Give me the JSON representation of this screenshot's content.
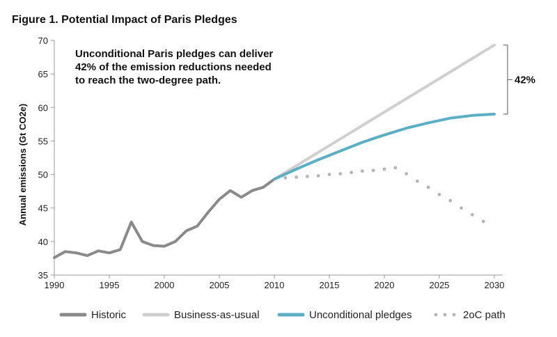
{
  "chart_data": {
    "type": "line",
    "title": "Figure 1. Potential Impact of Paris Pledges",
    "ylabel": "Annual emissions (Gt CO2e)",
    "xlabel": "",
    "xlim": [
      1990,
      2030
    ],
    "ylim": [
      35,
      70
    ],
    "x_ticks": [
      1990,
      1995,
      2000,
      2005,
      2010,
      2015,
      2020,
      2025,
      2030
    ],
    "y_ticks": [
      35,
      40,
      45,
      50,
      55,
      60,
      65,
      70
    ],
    "annotation_lines": [
      "Unconditional Paris pledges can deliver",
      "42% of the emission reductions needed",
      "to reach the two-degree path."
    ],
    "bracket_label": "42%",
    "bracket_range": [
      59,
      69.3
    ],
    "series": [
      {
        "name": "Historic",
        "color": "#8a8a8a",
        "style": "solid",
        "points": [
          [
            1990,
            37.6
          ],
          [
            1991,
            38.5
          ],
          [
            1992,
            38.3
          ],
          [
            1993,
            37.9
          ],
          [
            1994,
            38.6
          ],
          [
            1995,
            38.3
          ],
          [
            1996,
            38.8
          ],
          [
            1997,
            42.9
          ],
          [
            1998,
            40.0
          ],
          [
            1999,
            39.4
          ],
          [
            2000,
            39.3
          ],
          [
            2001,
            40.0
          ],
          [
            2002,
            41.6
          ],
          [
            2003,
            42.3
          ],
          [
            2004,
            44.4
          ],
          [
            2005,
            46.3
          ],
          [
            2006,
            47.6
          ],
          [
            2007,
            46.6
          ],
          [
            2008,
            47.6
          ],
          [
            2009,
            48.1
          ],
          [
            2010,
            49.3
          ]
        ]
      },
      {
        "name": "Business-as-usual",
        "color": "#cfcfcf",
        "style": "solid",
        "points": [
          [
            2010,
            49.3
          ],
          [
            2030,
            69.3
          ]
        ]
      },
      {
        "name": "Unconditional pledges",
        "color": "#5aafc4",
        "style": "solid",
        "points": [
          [
            2010,
            49.3
          ],
          [
            2012,
            50.8
          ],
          [
            2014,
            52.2
          ],
          [
            2016,
            53.5
          ],
          [
            2018,
            54.8
          ],
          [
            2020,
            55.9
          ],
          [
            2022,
            56.9
          ],
          [
            2024,
            57.7
          ],
          [
            2026,
            58.4
          ],
          [
            2028,
            58.8
          ],
          [
            2030,
            59.0
          ]
        ]
      },
      {
        "name": "2oC path",
        "color": "#b5b5b5",
        "style": "dotted",
        "points": [
          [
            2011,
            49.5
          ],
          [
            2012,
            49.6
          ],
          [
            2013,
            49.7
          ],
          [
            2014,
            49.8
          ],
          [
            2015,
            50.0
          ],
          [
            2016,
            50.1
          ],
          [
            2017,
            50.3
          ],
          [
            2018,
            50.5
          ],
          [
            2019,
            50.6
          ],
          [
            2020,
            50.8
          ],
          [
            2021,
            51.0
          ],
          [
            2022,
            50.1
          ],
          [
            2023,
            49.0
          ],
          [
            2024,
            48.1
          ],
          [
            2025,
            47.0
          ],
          [
            2026,
            46.1
          ],
          [
            2027,
            45.0
          ],
          [
            2028,
            44.0
          ],
          [
            2029,
            43.0
          ]
        ]
      }
    ],
    "legend": {
      "position": "bottom"
    }
  }
}
